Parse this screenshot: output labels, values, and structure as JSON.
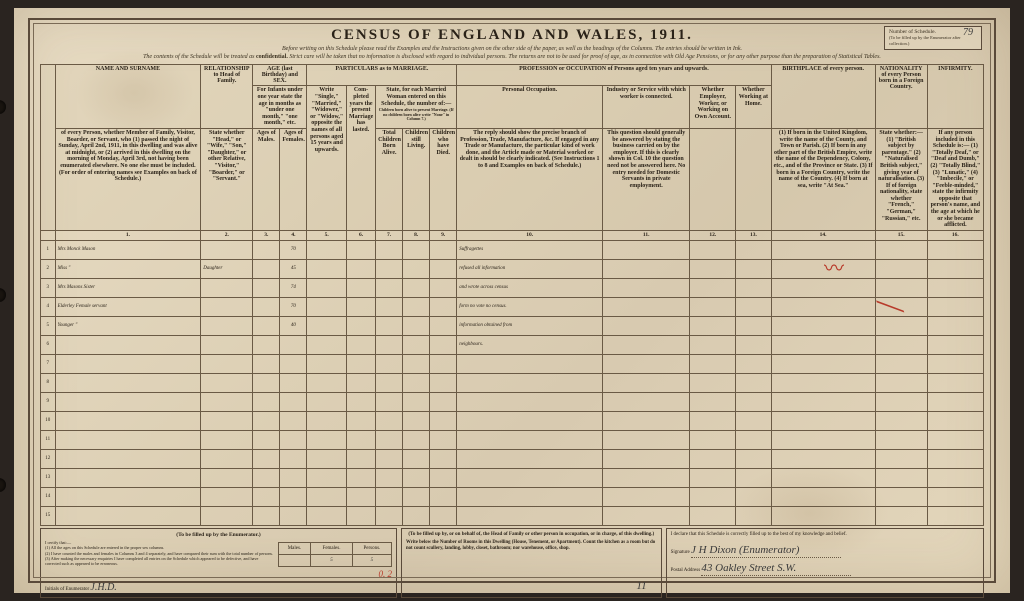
{
  "title": "CENSUS OF ENGLAND AND WALES, 1911.",
  "schedule_box": {
    "label": "Number of Schedule.",
    "sublabel": "(To be filled up by the Enumerator after collection.)",
    "number": "79"
  },
  "instructions": {
    "line1": "Before writing on this Schedule please read the Examples and the Instructions given on the other side of the paper, as well as the headings of the Columns. The entries should be written in Ink.",
    "line2_a": "The contents of the Schedule will be treated as ",
    "line2_b": "confidential.",
    "line2_c": " Strict care will be taken that no information is disclosed with regard to individual persons. The returns are not to be used for proof of age, as in connection with Old Age Pensions, or for any other purpose than the preparation of Statistical Tables."
  },
  "columns": {
    "headers": [
      "NAME AND SURNAME",
      "RELATIONSHIP to Head of Family.",
      "AGE (last Birthday) and SEX.",
      "PARTICULARS as to MARRIAGE.",
      "PROFESSION or OCCUPATION of Persons aged ten years and upwards.",
      "BIRTHPLACE of every person.",
      "NATIONALITY of every Person born in a Foreign Country.",
      "INFIRMITY."
    ],
    "name_sub": "of every Person, whether Member of Family, Visitor, Boarder, or Servant, who\n(1) passed the night of Sunday, April 2nd, 1911, in this dwelling and was alive at midnight, or\n(2) arrived in this dwelling on the morning of Monday, April 3rd, not having been enumerated elsewhere.\nNo one else must be included.\n(For order of entering names see Examples on back of Schedule.)",
    "rel_sub": "State whether \"Head,\" or \"Wife,\" \"Son,\" \"Daughter,\" or other Relative, \"Visitor,\" \"Boarder,\" or \"Servant.\"",
    "age_sub": "For Infants under one year state the age in months as \"under one month,\" \"one month,\" etc.",
    "age_m": "Ages of Males.",
    "age_f": "Ages of Females.",
    "marr_sub": "Write \"Single,\" \"Married,\" \"Widower,\" or \"Widow,\" opposite the names of all persons aged 15 years and upwards.",
    "marr_yrs": "Com-pleted years the present Marriage has lasted.",
    "marr_ch": "State, for each Married Woman entered on this Schedule, the number of:—",
    "marr_ch_sub": "Children born alive to present Marriage. (If no children born alive write \"None\" in Column 7.)",
    "ch_total": "Total Children Born Alive.",
    "ch_liv": "Children still Living.",
    "ch_died": "Children who have Died.",
    "occ_personal": "Personal Occupation.",
    "occ_personal_sub": "The reply should show the precise branch of Profession, Trade, Manufacture, &c.\nIf engaged in any Trade or Manufacture, the particular kind of work done, and the Article made or Material worked or dealt in should be clearly indicated.\n(See Instructions 1 to 8 and Examples on back of Schedule.)",
    "occ_industry": "Industry or Service with which worker is connected.",
    "occ_industry_sub": "This question should generally be answered by stating the business carried on by the employer. If this is clearly shown in Col. 10 the question need not be answered here.\nNo entry needed for Domestic Servants in private employment.",
    "occ_employer": "Whether Employer, Worker, or Working on Own Account.",
    "occ_home": "Whether Working at Home.",
    "birth_sub": "(1) If born in the United Kingdom, write the name of the County, and Town or Parish.\n(2) If born in any other part of the British Empire, write the name of the Dependency, Colony, etc., and of the Province or State.\n(3) If born in a Foreign Country, write the name of the Country.\n(4) If born at sea, write \"At Sea.\"",
    "nat_sub": "State whether:—\n(1) \"British subject by parentage.\"\n(2) \"Naturalised British subject,\" giving year of naturalisation.\n(3) If of foreign nationality, state whether \"French,\" \"German,\" \"Russian,\" etc.",
    "inf_sub": "If any person included in this Schedule is:—\n(1) \"Totally Deaf,\" or \"Deaf and Dumb,\"\n(2) \"Totally Blind,\"\n(3) \"Lunatic,\"\n(4) \"Imbecile,\" or \"Feeble-minded,\"\nstate the infirmity opposite that person's name, and the age at which he or she became afflicted."
  },
  "col_numbers": [
    "1.",
    "2.",
    "3.",
    "4.",
    "5.",
    "6.",
    "7.",
    "8.",
    "9.",
    "10.",
    "11.",
    "12.",
    "13.",
    "14.",
    "15.",
    "16."
  ],
  "rows": [
    {
      "n": "1",
      "name": "Mrs Monck Mason",
      "rel": "",
      "age_f": "70",
      "occ": "Suffragettes"
    },
    {
      "n": "2",
      "name": "Miss     \"",
      "rel": "Daughter",
      "age_f": "45",
      "occ": "refused all information"
    },
    {
      "n": "3",
      "name": "Mrs Masons Sister",
      "rel": "",
      "age_f": "74",
      "occ": "and wrote across census"
    },
    {
      "n": "4",
      "name": "Elderley Female servant",
      "rel": "",
      "age_f": "70",
      "occ": "form  no vote no census."
    },
    {
      "n": "5",
      "name": "Younger     \"",
      "rel": "",
      "age_f": "40",
      "occ": "information obtained from"
    },
    {
      "n": "6",
      "name": "",
      "rel": "",
      "age_f": "",
      "occ": "neighbours."
    },
    {
      "n": "7"
    },
    {
      "n": "8"
    },
    {
      "n": "9"
    },
    {
      "n": "10"
    },
    {
      "n": "11"
    },
    {
      "n": "12"
    },
    {
      "n": "13"
    },
    {
      "n": "14"
    },
    {
      "n": "15"
    }
  ],
  "footer": {
    "enum_head": "(To be filled up by the Enumerator.)",
    "cert": "I certify that:—\n(1) All the ages on this Schedule are entered in the proper sex columns.\n(2) I have counted the males and females in Columns 3 and 4 separately, and have compared their sum with the total number of persons.\n(3) After making the necessary enquiries I have completed all entries on the Schedule which appeared to be defective, and have corrected such as appeared to be erroneous.",
    "initials_lbl": "Initials of Enumerator",
    "initials": "J.H.D.",
    "totals": {
      "males": "",
      "females": "5",
      "persons": "5"
    },
    "red_mark": "0. 2",
    "mid_head": "(To be filled up by, or on behalf of, the Head of Family or other person in occupation, or in charge, of this dwelling.)",
    "rooms_text": "Write below the Number of Rooms in this Dwelling (House, Tenement, or Apartment). Count the kitchen as a room but do not count scullery, landing, lobby, closet, bathroom; nor warehouse, office, shop.",
    "rooms_val": "11",
    "decl": "I declare that this Schedule is correctly filled up to the best of my knowledge and belief.",
    "sig_lbl": "Signature",
    "sig": "J H Dixon (Enumerator)",
    "addr_lbl": "Postal Address",
    "addr": "43 Oakley Street  S.W."
  }
}
